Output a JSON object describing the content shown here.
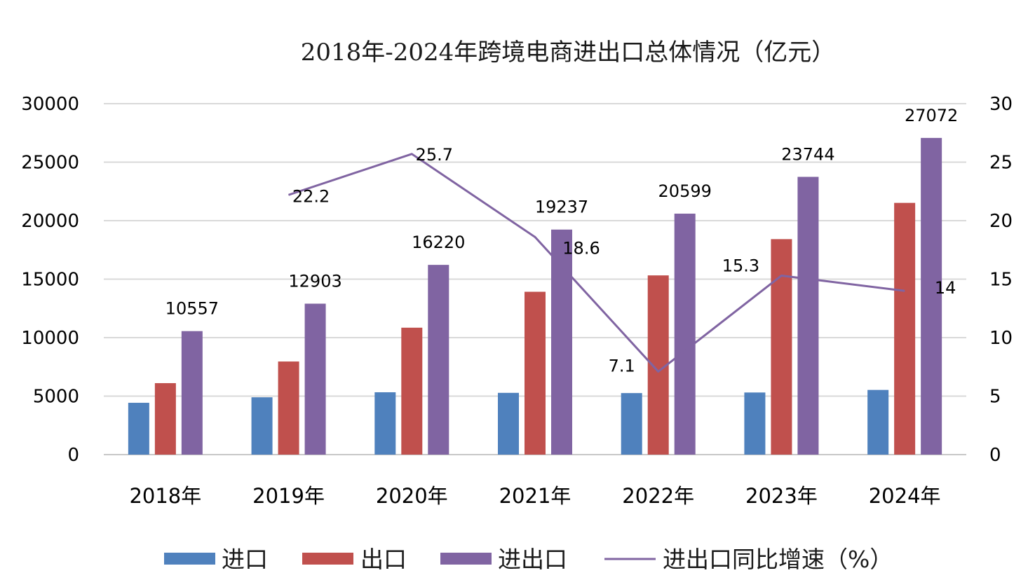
{
  "chart_data": {
    "type": "bar",
    "title": "2018年-2024年跨境电商进出口总体情况（亿元）",
    "categories": [
      "2018年",
      "2019年",
      "2020年",
      "2021年",
      "2022年",
      "2023年",
      "2024年"
    ],
    "series": [
      {
        "name": "进口",
        "type": "bar",
        "axis": "left",
        "color": "#4f81bd",
        "values": [
          4430,
          4900,
          5330,
          5280,
          5260,
          5310,
          5530
        ]
      },
      {
        "name": "出口",
        "type": "bar",
        "axis": "left",
        "color": "#c0504d",
        "values": [
          6110,
          7960,
          10850,
          13920,
          15320,
          18420,
          21520
        ]
      },
      {
        "name": "进出口",
        "type": "bar",
        "axis": "left",
        "color": "#8064a2",
        "values": [
          10557,
          12903,
          16220,
          19237,
          20599,
          23744,
          27072
        ],
        "labels": [
          "10557",
          "12903",
          "16220",
          "19237",
          "20599",
          "23744",
          "27072"
        ]
      },
      {
        "name": "进出口同比增速（%）",
        "type": "line",
        "axis": "right",
        "color": "#8064a2",
        "values": [
          null,
          22.2,
          25.7,
          18.6,
          7.1,
          15.3,
          14
        ],
        "labels": [
          null,
          "22.2",
          "25.7",
          "18.6",
          "7.1",
          "15.3",
          "14"
        ]
      }
    ],
    "y_left": {
      "min": 0,
      "max": 30000,
      "ticks": [
        "0",
        "5000",
        "10000",
        "15000",
        "20000",
        "25000",
        "30000"
      ]
    },
    "y_right": {
      "min": 0,
      "max": 30,
      "ticks": [
        "0",
        "5",
        "10",
        "15",
        "20",
        "25",
        "30"
      ]
    },
    "grid": true,
    "legend": "bottom"
  }
}
